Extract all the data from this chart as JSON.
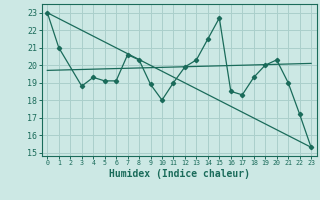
{
  "title": "",
  "xlabel": "Humidex (Indice chaleur)",
  "bg_color": "#cce8e4",
  "grid_color": "#aacfcb",
  "line_color": "#1a6b5a",
  "xlim": [
    -0.5,
    23.5
  ],
  "ylim": [
    14.8,
    23.5
  ],
  "yticks": [
    15,
    16,
    17,
    18,
    19,
    20,
    21,
    22,
    23
  ],
  "xticks": [
    0,
    1,
    2,
    3,
    4,
    5,
    6,
    7,
    8,
    9,
    10,
    11,
    12,
    13,
    14,
    15,
    16,
    17,
    18,
    19,
    20,
    21,
    22,
    23
  ],
  "series1_x": [
    0,
    1,
    3,
    4,
    5,
    6,
    7,
    8,
    9,
    10,
    11,
    12,
    13,
    14,
    15,
    16,
    17,
    18,
    19,
    20,
    21,
    22,
    23
  ],
  "series1_y": [
    23.0,
    21.0,
    18.8,
    19.3,
    19.1,
    19.1,
    20.6,
    20.3,
    18.9,
    18.0,
    19.0,
    19.9,
    20.3,
    21.5,
    22.7,
    18.5,
    18.3,
    19.3,
    20.0,
    20.3,
    19.0,
    17.2,
    15.3
  ],
  "series2_x": [
    0,
    23
  ],
  "series2_y": [
    19.7,
    20.1
  ],
  "series3_x": [
    0,
    23
  ],
  "series3_y": [
    23.0,
    15.3
  ]
}
